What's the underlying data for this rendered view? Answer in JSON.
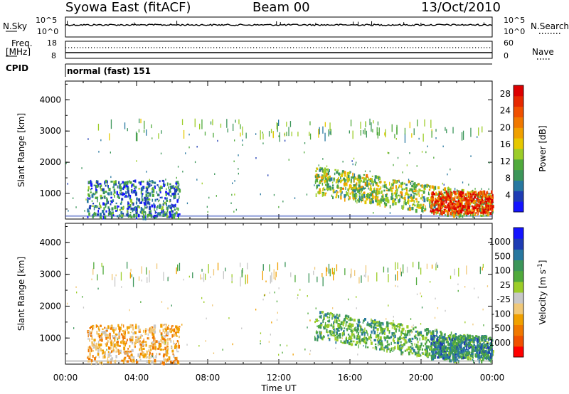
{
  "header": {
    "radar": "Syowa East (fitACF)",
    "beam": "Beam 00",
    "date": "13/Oct/2010"
  },
  "panels": {
    "noise": {
      "left_label": "N.Sky",
      "left_ticks": [
        "10^5",
        "10^0"
      ],
      "right_label": "N.Search",
      "right_ticks": [
        "10^5",
        "10^0"
      ]
    },
    "freq": {
      "left_label_1": "Freq.",
      "left_label_2": "[MHz]",
      "left_ticks": [
        "18",
        "8"
      ],
      "right_label": "Nave",
      "right_ticks": [
        "60",
        "0"
      ]
    },
    "cpid": {
      "label": "CPID",
      "mode": "normal (fast) 151"
    }
  },
  "chart_data": [
    {
      "type": "heatmap",
      "title": "",
      "xlabel": "Time UT",
      "ylabel": "Slant Range [km]",
      "x_ticks": [
        "00:00",
        "04:00",
        "08:00",
        "12:00",
        "16:00",
        "20:00",
        "00:00"
      ],
      "xlim_hours": [
        0,
        24
      ],
      "y_ticks": [
        1000,
        2000,
        3000,
        4000
      ],
      "ylim": [
        180,
        4600
      ],
      "colorbar": {
        "label": "Power [dB]",
        "ticks": [
          "4",
          "8",
          "12",
          "16",
          "20",
          "24",
          "28"
        ],
        "range": [
          0,
          30
        ],
        "colors": [
          "#1414ff",
          "#1e3cb4",
          "#2878a0",
          "#3c965a",
          "#50aa3c",
          "#9ccd28",
          "#e6c800",
          "#f0a000",
          "#f07800",
          "#f05000",
          "#e62800",
          "#dc0000"
        ]
      },
      "regions": [
        {
          "name": "early",
          "t": [
            1.2,
            6.4
          ],
          "r": [
            250,
            1450
          ],
          "level": 0.22
        },
        {
          "name": "afternoon",
          "t": [
            14.0,
            24.0
          ],
          "r": [
            300,
            1900
          ],
          "level": 0.45
        },
        {
          "name": "late",
          "t": [
            20.5,
            24.0
          ],
          "r": [
            400,
            1100
          ],
          "level": 0.85
        }
      ]
    },
    {
      "type": "heatmap",
      "title": "",
      "xlabel": "Time UT",
      "ylabel": "Slant Range [km]",
      "x_ticks": [
        "00:00",
        "04:00",
        "08:00",
        "12:00",
        "16:00",
        "20:00",
        "00:00"
      ],
      "xlim_hours": [
        0,
        24
      ],
      "y_ticks": [
        1000,
        2000,
        3000,
        4000
      ],
      "ylim": [
        180,
        4600
      ],
      "colorbar": {
        "label": "Velocity [m s^-1]",
        "ticks": [
          "1000",
          "500",
          "100",
          "25",
          "-25",
          "-100",
          "-500",
          "-1000"
        ],
        "range": [
          -1000,
          1000
        ],
        "colors": [
          "#ff0000",
          "#f05000",
          "#f07800",
          "#f0a000",
          "#f0c878",
          "#c8c8c8",
          "#9ccd28",
          "#50aa3c",
          "#3c965a",
          "#2878a0",
          "#1e3cb4",
          "#1414ff"
        ]
      },
      "regions": [
        {
          "name": "early",
          "t": [
            1.2,
            6.4
          ],
          "r": [
            250,
            1450
          ],
          "level": -0.35
        },
        {
          "name": "afternoon",
          "t": [
            14.0,
            24.0
          ],
          "r": [
            300,
            1900
          ],
          "level": 0.3
        },
        {
          "name": "late",
          "t": [
            20.5,
            24.0
          ],
          "r": [
            400,
            1100
          ],
          "level": 0.5
        }
      ]
    }
  ]
}
